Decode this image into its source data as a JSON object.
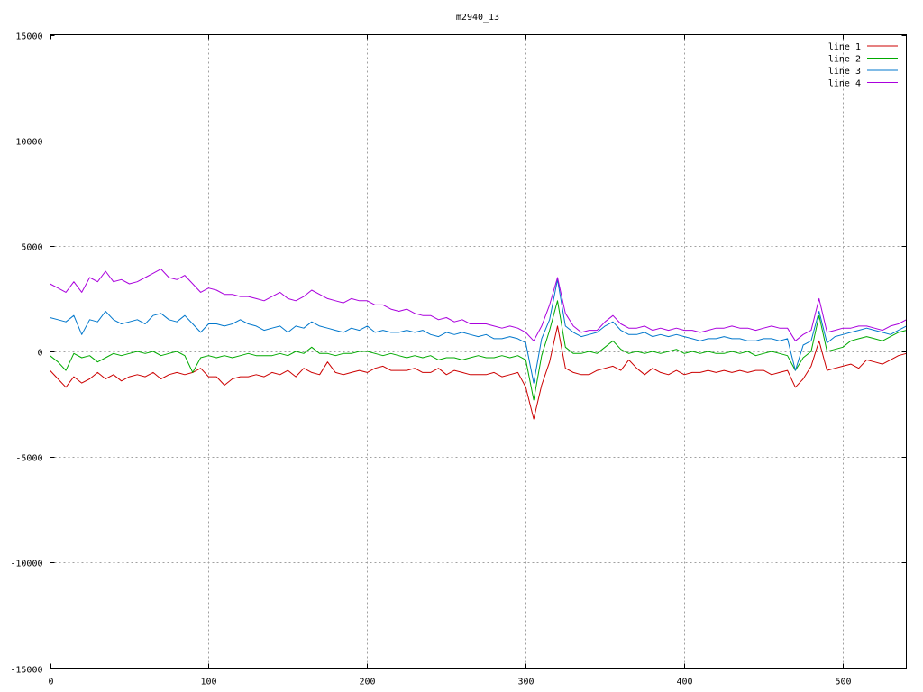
{
  "chart_data": {
    "type": "line",
    "title": "m2940_13",
    "xlabel": "",
    "ylabel": "",
    "xlim": [
      0,
      540
    ],
    "ylim": [
      -15000,
      15000
    ],
    "x_ticks": [
      0,
      100,
      200,
      300,
      400,
      500
    ],
    "y_ticks": [
      -15000,
      -10000,
      -5000,
      0,
      5000,
      10000,
      15000
    ],
    "grid": true,
    "legend_position": "top-right",
    "sample_step": 5,
    "series": [
      {
        "name": "line 1",
        "color": "#cc0000",
        "values": [
          -900,
          -1300,
          -1700,
          -1200,
          -1500,
          -1300,
          -1000,
          -1300,
          -1100,
          -1400,
          -1200,
          -1100,
          -1200,
          -1000,
          -1300,
          -1100,
          -1000,
          -1100,
          -1000,
          -800,
          -1200,
          -1200,
          -1600,
          -1300,
          -1200,
          -1200,
          -1100,
          -1200,
          -1000,
          -1100,
          -900,
          -1200,
          -800,
          -1000,
          -1100,
          -500,
          -1000,
          -1100,
          -1000,
          -900,
          -1000,
          -800,
          -700,
          -900,
          -900,
          -900,
          -800,
          -1000,
          -1000,
          -800,
          -1100,
          -900,
          -1000,
          -1100,
          -1100,
          -1100,
          -1000,
          -1200,
          -1100,
          -1000,
          -1700,
          -3200,
          -1600,
          -500,
          1200,
          -800,
          -1000,
          -1100,
          -1100,
          -900,
          -800,
          -700,
          -900,
          -400,
          -800,
          -1100,
          -800,
          -1000,
          -1100,
          -900,
          -1100,
          -1000,
          -1000,
          -900,
          -1000,
          -900,
          -1000,
          -900,
          -1000,
          -900,
          -900,
          -1100,
          -1000,
          -900,
          -1700,
          -1300,
          -700,
          500,
          -900,
          -800,
          -700,
          -600,
          -800,
          -400,
          -500,
          -600,
          -400,
          -200,
          -100
        ]
      },
      {
        "name": "line 2",
        "color": "#00aa00",
        "values": [
          -200,
          -500,
          -900,
          -100,
          -300,
          -200,
          -500,
          -300,
          -100,
          -200,
          -100,
          0,
          -100,
          0,
          -200,
          -100,
          0,
          -200,
          -1000,
          -300,
          -200,
          -300,
          -200,
          -300,
          -200,
          -100,
          -200,
          -200,
          -200,
          -100,
          -200,
          0,
          -100,
          200,
          -100,
          -100,
          -200,
          -100,
          -100,
          0,
          0,
          -100,
          -200,
          -100,
          -200,
          -300,
          -200,
          -300,
          -200,
          -400,
          -300,
          -300,
          -400,
          -300,
          -200,
          -300,
          -300,
          -200,
          -300,
          -200,
          -400,
          -2300,
          -200,
          1000,
          2400,
          200,
          -100,
          -100,
          0,
          -100,
          200,
          500,
          100,
          -100,
          0,
          -100,
          0,
          -100,
          0,
          100,
          -100,
          0,
          -100,
          0,
          -100,
          -100,
          0,
          -100,
          0,
          -200,
          -100,
          0,
          -100,
          -200,
          -900,
          -300,
          0,
          1700,
          0,
          100,
          200,
          500,
          600,
          700,
          600,
          500,
          700,
          900,
          1000
        ]
      },
      {
        "name": "line 3",
        "color": "#0077cc",
        "values": [
          1600,
          1500,
          1400,
          1700,
          800,
          1500,
          1400,
          1900,
          1500,
          1300,
          1400,
          1500,
          1300,
          1700,
          1800,
          1500,
          1400,
          1700,
          1300,
          900,
          1300,
          1300,
          1200,
          1300,
          1500,
          1300,
          1200,
          1000,
          1100,
          1200,
          900,
          1200,
          1100,
          1400,
          1200,
          1100,
          1000,
          900,
          1100,
          1000,
          1200,
          900,
          1000,
          900,
          900,
          1000,
          900,
          1000,
          800,
          700,
          900,
          800,
          900,
          800,
          700,
          800,
          600,
          600,
          700,
          600,
          400,
          -1500,
          600,
          1500,
          3400,
          1200,
          900,
          700,
          800,
          900,
          1200,
          1400,
          1000,
          800,
          800,
          900,
          700,
          800,
          700,
          800,
          700,
          600,
          500,
          600,
          600,
          700,
          600,
          600,
          500,
          500,
          600,
          600,
          500,
          600,
          -900,
          300,
          500,
          1900,
          400,
          700,
          800,
          900,
          1000,
          1100,
          1000,
          900,
          800,
          1000,
          1200
        ]
      },
      {
        "name": "line 4",
        "color": "#aa00dd",
        "values": [
          3200,
          3000,
          2800,
          3300,
          2800,
          3500,
          3300,
          3800,
          3300,
          3400,
          3200,
          3300,
          3500,
          3700,
          3900,
          3500,
          3400,
          3600,
          3200,
          2800,
          3000,
          2900,
          2700,
          2700,
          2600,
          2600,
          2500,
          2400,
          2600,
          2800,
          2500,
          2400,
          2600,
          2900,
          2700,
          2500,
          2400,
          2300,
          2500,
          2400,
          2400,
          2200,
          2200,
          2000,
          1900,
          2000,
          1800,
          1700,
          1700,
          1500,
          1600,
          1400,
          1500,
          1300,
          1300,
          1300,
          1200,
          1100,
          1200,
          1100,
          900,
          500,
          1200,
          2200,
          3500,
          1800,
          1200,
          900,
          1000,
          1000,
          1400,
          1700,
          1300,
          1100,
          1100,
          1200,
          1000,
          1100,
          1000,
          1100,
          1000,
          1000,
          900,
          1000,
          1100,
          1100,
          1200,
          1100,
          1100,
          1000,
          1100,
          1200,
          1100,
          1100,
          500,
          800,
          1000,
          2500,
          900,
          1000,
          1100,
          1100,
          1200,
          1200,
          1100,
          1000,
          1200,
          1300,
          1500
        ]
      }
    ]
  }
}
